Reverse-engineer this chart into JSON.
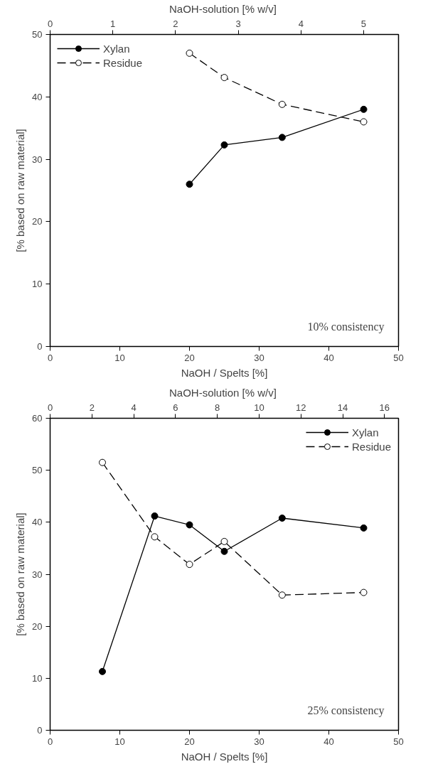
{
  "chart_data": [
    {
      "type": "line",
      "xlabel": "NaOH / Spelts [%]",
      "ylabel": "[% based on raw material]",
      "x2label": "NaOH-solution  [% w/v]",
      "xlim": [
        0,
        50
      ],
      "xticks": [
        0,
        10,
        20,
        30,
        40,
        50
      ],
      "ylim": [
        0,
        50
      ],
      "yticks": [
        0,
        10,
        20,
        30,
        40,
        50
      ],
      "x2lim": [
        0,
        5.556
      ],
      "x2ticks": [
        0,
        1,
        2,
        3,
        4,
        5
      ],
      "x": [
        20,
        25,
        33.3,
        45
      ],
      "series": [
        {
          "name": "Xylan",
          "color": "#000000",
          "line_style": "solid",
          "values": [
            26,
            32.3,
            33.5,
            38
          ]
        },
        {
          "name": "Residue",
          "color": "#000000",
          "line_style": "dashed",
          "values": [
            47,
            43.1,
            38.8,
            36
          ]
        }
      ],
      "marker": "circle",
      "grid": false,
      "legend": "top left",
      "annotations": [
        "10% consistency"
      ]
    },
    {
      "type": "line",
      "xlabel": "NaOH / Spelts [%]",
      "ylabel": "[% based on raw material]",
      "x2label": "NaOH-solution  [% w/v]",
      "xlim": [
        0,
        50
      ],
      "xticks": [
        0,
        10,
        20,
        30,
        40,
        50
      ],
      "ylim": [
        0,
        60
      ],
      "yticks": [
        0,
        10,
        20,
        30,
        40,
        50,
        60
      ],
      "x2lim": [
        0,
        16.67
      ],
      "x2ticks": [
        0,
        2,
        4,
        6,
        8,
        10,
        12,
        14,
        16
      ],
      "x": [
        7.5,
        15,
        20,
        25,
        33.3,
        45
      ],
      "series": [
        {
          "name": "Xylan",
          "color": "#000000",
          "line_style": "solid",
          "values": [
            11.3,
            41.2,
            39.5,
            34.4,
            40.8,
            38.9
          ]
        },
        {
          "name": "Residue",
          "color": "#000000",
          "line_style": "dashed",
          "values": [
            51.5,
            37.2,
            31.9,
            36.3,
            26,
            26.5
          ]
        }
      ],
      "marker": "circle",
      "grid": false,
      "legend": "top right",
      "annotations": [
        "25% consistency"
      ]
    }
  ]
}
